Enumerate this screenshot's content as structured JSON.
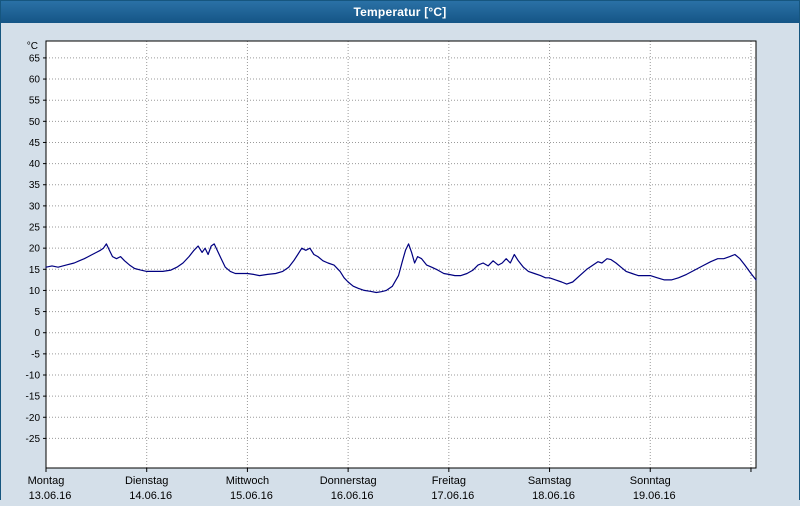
{
  "window": {
    "title": "Temperatur [°C]"
  },
  "colors": {
    "title_bar": "#17568C",
    "title_text": "#FFFFFF",
    "background": "#D4DFE9",
    "plot_background": "#FFFFFF",
    "frame": "#000000",
    "grid": "#9A9A9A",
    "line": "#000080"
  },
  "chart_data": {
    "type": "line",
    "title": "Temperatur [°C]",
    "y_unit_label": "°C",
    "ylabel": "Temperatur",
    "xlabel": "",
    "grid": "dotted",
    "legend_position": "none",
    "ylim": [
      -32,
      69
    ],
    "yticks": [
      65,
      60,
      55,
      50,
      45,
      40,
      35,
      30,
      25,
      20,
      15,
      10,
      5,
      0,
      -5,
      -10,
      -15,
      -20,
      -25
    ],
    "x_range_days": [
      0,
      7.05
    ],
    "x_tick_days": [
      0,
      1,
      2,
      3,
      4,
      5,
      6,
      7
    ],
    "x_labels": [
      {
        "day": "Montag",
        "date": "13.06.16",
        "x": 0
      },
      {
        "day": "Dienstag",
        "date": "14.06.16",
        "x": 1
      },
      {
        "day": "Mittwoch",
        "date": "15.06.16",
        "x": 2
      },
      {
        "day": "Donnerstag",
        "date": "16.06.16",
        "x": 3
      },
      {
        "day": "Freitag",
        "date": "17.06.16",
        "x": 4
      },
      {
        "day": "Samstag",
        "date": "18.06.16",
        "x": 5
      },
      {
        "day": "Sonntag",
        "date": "19.06.16",
        "x": 6
      }
    ],
    "series": [
      {
        "name": "Temperatur",
        "color": "#000080",
        "x": [
          0.0,
          0.06,
          0.12,
          0.2,
          0.28,
          0.33,
          0.38,
          0.42,
          0.46,
          0.5,
          0.54,
          0.57,
          0.6,
          0.63,
          0.66,
          0.7,
          0.74,
          0.78,
          0.83,
          0.88,
          0.94,
          1.0,
          1.08,
          1.16,
          1.24,
          1.3,
          1.36,
          1.42,
          1.47,
          1.51,
          1.55,
          1.58,
          1.61,
          1.64,
          1.67,
          1.7,
          1.74,
          1.78,
          1.83,
          1.88,
          1.94,
          2.0,
          2.06,
          2.12,
          2.2,
          2.28,
          2.35,
          2.41,
          2.46,
          2.5,
          2.54,
          2.58,
          2.62,
          2.66,
          2.7,
          2.75,
          2.8,
          2.86,
          2.92,
          2.96,
          3.0,
          3.05,
          3.1,
          3.16,
          3.22,
          3.28,
          3.33,
          3.38,
          3.44,
          3.5,
          3.54,
          3.57,
          3.6,
          3.63,
          3.66,
          3.69,
          3.73,
          3.78,
          3.83,
          3.89,
          3.95,
          4.0,
          4.06,
          4.12,
          4.18,
          4.24,
          4.29,
          4.34,
          4.39,
          4.44,
          4.49,
          4.53,
          4.57,
          4.61,
          4.65,
          4.69,
          4.74,
          4.79,
          4.85,
          4.91,
          4.96,
          5.0,
          5.06,
          5.12,
          5.17,
          5.23,
          5.3,
          5.37,
          5.43,
          5.48,
          5.52,
          5.57,
          5.61,
          5.66,
          5.71,
          5.76,
          5.82,
          5.88,
          5.94,
          6.0,
          6.07,
          6.14,
          6.21,
          6.28,
          6.36,
          6.44,
          6.52,
          6.6,
          6.67,
          6.73,
          6.79,
          6.84,
          6.89,
          6.94,
          7.0,
          7.05
        ],
        "y": [
          15.5,
          15.8,
          15.5,
          16.0,
          16.5,
          17.0,
          17.5,
          18.0,
          18.5,
          19.0,
          19.5,
          20.0,
          21.0,
          19.5,
          18.0,
          17.5,
          18.0,
          17.0,
          16.0,
          15.2,
          14.8,
          14.5,
          14.5,
          14.5,
          14.8,
          15.5,
          16.5,
          18.0,
          19.5,
          20.5,
          19.0,
          20.0,
          18.5,
          20.5,
          21.0,
          19.5,
          17.5,
          15.5,
          14.5,
          14.0,
          14.0,
          14.0,
          13.8,
          13.5,
          13.8,
          14.0,
          14.5,
          15.5,
          17.0,
          18.5,
          20.0,
          19.5,
          20.0,
          18.5,
          18.0,
          17.0,
          16.5,
          16.0,
          14.5,
          13.0,
          12.0,
          11.0,
          10.5,
          10.0,
          9.8,
          9.5,
          9.7,
          10.0,
          11.0,
          13.5,
          17.0,
          19.5,
          21.0,
          19.0,
          16.5,
          18.0,
          17.5,
          16.0,
          15.5,
          14.8,
          14.0,
          13.8,
          13.5,
          13.5,
          14.0,
          14.8,
          16.0,
          16.5,
          15.8,
          17.0,
          16.0,
          16.5,
          17.5,
          16.5,
          18.5,
          17.0,
          15.5,
          14.5,
          14.0,
          13.5,
          13.0,
          13.0,
          12.5,
          12.0,
          11.5,
          12.0,
          13.5,
          15.0,
          16.0,
          16.8,
          16.5,
          17.5,
          17.3,
          16.5,
          15.5,
          14.5,
          14.0,
          13.5,
          13.5,
          13.5,
          13.0,
          12.5,
          12.5,
          13.0,
          13.8,
          14.8,
          15.8,
          16.8,
          17.5,
          17.5,
          18.0,
          18.5,
          17.5,
          16.0,
          14.0,
          12.5
        ]
      }
    ]
  }
}
